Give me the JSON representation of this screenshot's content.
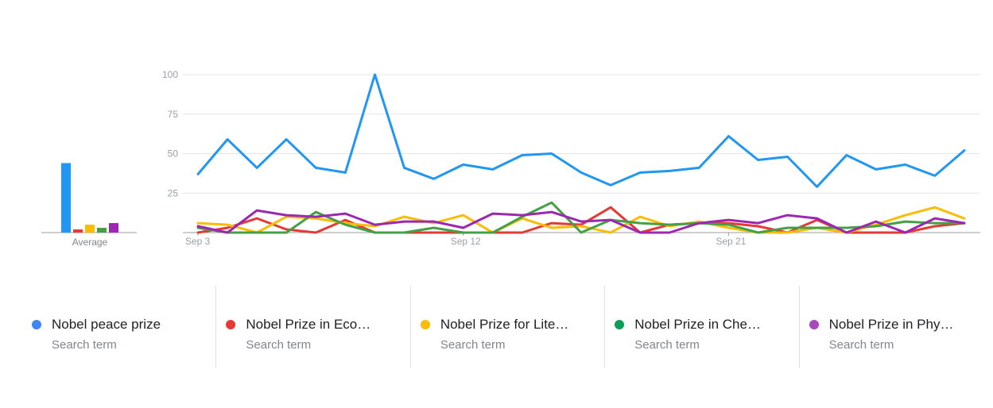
{
  "chart_data": {
    "type": "line",
    "x_tick_labels": [
      "Sep 3",
      "Sep 12",
      "Sep 21"
    ],
    "y_tick_labels": [
      "100",
      "75",
      "50",
      "25"
    ],
    "ylim": [
      0,
      100
    ],
    "average_label": "Average",
    "series": [
      {
        "name": "Nobel peace prize",
        "display_name": "Nobel peace prize",
        "subtitle": "Search term",
        "color": "#2196f3",
        "average": 44,
        "values": [
          37,
          59,
          41,
          59,
          41,
          38,
          100,
          41,
          34,
          43,
          40,
          49,
          50,
          38,
          30,
          38,
          39,
          41,
          61,
          46,
          48,
          29,
          49,
          40,
          43,
          36,
          52
        ]
      },
      {
        "name": "Nobel Prize in Economics",
        "display_name": "Nobel Prize in Eco…",
        "subtitle": "Search term",
        "color": "#e53935",
        "average": 2,
        "values": [
          0,
          3,
          9,
          2,
          0,
          8,
          0,
          0,
          0,
          0,
          0,
          0,
          6,
          5,
          16,
          0,
          5,
          6,
          6,
          4,
          0,
          8,
          0,
          0,
          0,
          4,
          6
        ]
      },
      {
        "name": "Nobel Prize for Literature",
        "display_name": "Nobel Prize for Lite…",
        "subtitle": "Search term",
        "color": "#fbbc04",
        "average": 5,
        "values": [
          6,
          5,
          0,
          10,
          9,
          6,
          4,
          10,
          6,
          11,
          0,
          9,
          3,
          4,
          0,
          10,
          4,
          7,
          3,
          0,
          0,
          3,
          0,
          5,
          11,
          16,
          9
        ]
      },
      {
        "name": "Nobel Prize in Chemistry",
        "display_name": "Nobel Prize in Che…",
        "subtitle": "Search term",
        "color": "#43a047",
        "average": 3,
        "values": [
          3,
          0,
          0,
          0,
          13,
          5,
          0,
          0,
          3,
          0,
          0,
          10,
          19,
          0,
          8,
          6,
          5,
          6,
          5,
          0,
          3,
          3,
          3,
          4,
          7,
          6,
          6
        ]
      },
      {
        "name": "Nobel Prize in Physics",
        "display_name": "Nobel Prize in Phy…",
        "subtitle": "Search term",
        "color": "#9c27b0",
        "average": 6,
        "values": [
          4,
          0,
          14,
          11,
          10,
          12,
          5,
          7,
          7,
          3,
          12,
          11,
          13,
          7,
          8,
          0,
          0,
          6,
          8,
          6,
          11,
          9,
          0,
          7,
          0,
          9,
          6
        ]
      }
    ]
  },
  "legend_dot_colors": [
    "#4285f4",
    "#e53935",
    "#fbbc04",
    "#0f9d58",
    "#ab47bc"
  ]
}
